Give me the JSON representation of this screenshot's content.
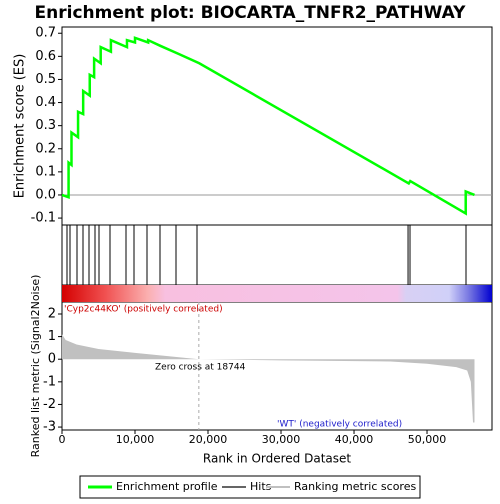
{
  "chart_data": [
    {
      "type": "line",
      "title": "Enrichment plot: BIOCARTA_TNFR2_PATHWAY",
      "y_label": "Enrichment score (ES)",
      "x": [
        0,
        900,
        900,
        1300,
        1300,
        2200,
        2200,
        2900,
        2900,
        3800,
        3800,
        4400,
        4400,
        5300,
        5300,
        6700,
        6700,
        8900,
        8900,
        10000,
        10000,
        11800,
        11800,
        13500,
        16000,
        18800,
        47500,
        47700,
        55300,
        55300,
        56500
      ],
      "series": [
        {
          "name": "Enrichment profile",
          "color": "#00ff00",
          "values": [
            0,
            -0.01,
            0.14,
            0.13,
            0.27,
            0.25,
            0.36,
            0.35,
            0.45,
            0.43,
            0.52,
            0.51,
            0.59,
            0.57,
            0.64,
            0.62,
            0.67,
            0.64,
            0.67,
            0.66,
            0.68,
            0.66,
            0.67,
            0.645,
            0.61,
            0.57,
            0.05,
            0.06,
            -0.08,
            0.015,
            0.0
          ]
        }
      ],
      "xlim": [
        0,
        58900
      ],
      "ylim": [
        -0.13,
        0.727
      ],
      "yticks": [
        -0.1,
        {
          "value": 0,
          "label": "0.0"
        },
        0.1,
        0.2,
        0.3,
        0.4,
        0.5,
        0.6,
        0.7
      ]
    },
    {
      "type": "hits",
      "name": "Hits",
      "color": "#000000",
      "xlim": [
        0,
        58900
      ],
      "x": [
        685,
        1096,
        2055,
        2877,
        3700,
        4520,
        5068,
        6575,
        8767,
        9863,
        11644,
        13425,
        15616,
        18493,
        47400,
        47670,
        55340
      ]
    },
    {
      "type": "area",
      "x_label": "Rank in Ordered Dataset",
      "y_label": "Ranked list metric (Signal2Noise)",
      "x": [
        0,
        500,
        2000,
        5000,
        10000,
        15000,
        18744,
        30000,
        45000,
        50000,
        54000,
        55500,
        56000,
        56300,
        56500
      ],
      "series": [
        {
          "name": "Ranking metric scores",
          "color": "#c0c0c0",
          "values": [
            1.1,
            0.85,
            0.65,
            0.45,
            0.28,
            0.12,
            0,
            -0.05,
            -0.1,
            -0.2,
            -0.35,
            -0.5,
            -1.0,
            -2.8,
            -2.8
          ]
        }
      ],
      "xlim": [
        0,
        58900
      ],
      "ylim": [
        -3.13,
        2.53
      ],
      "xticks": [
        0,
        {
          "value": 10000,
          "label": "10,000"
        },
        {
          "value": 20000,
          "label": "20,000"
        },
        {
          "value": 30000,
          "label": "30,000"
        },
        {
          "value": 40000,
          "label": "40,000"
        },
        {
          "value": 50000,
          "label": "50,000"
        }
      ],
      "yticks": [
        -3,
        -2,
        -1,
        0,
        1,
        2
      ],
      "pos_label": "'Cyp2c44KO' (positively correlated)",
      "neg_label": "'WT' (negatively correlated)",
      "zero_cross": 18744,
      "zero_cross_label": "Zero cross at 18744"
    }
  ]
}
